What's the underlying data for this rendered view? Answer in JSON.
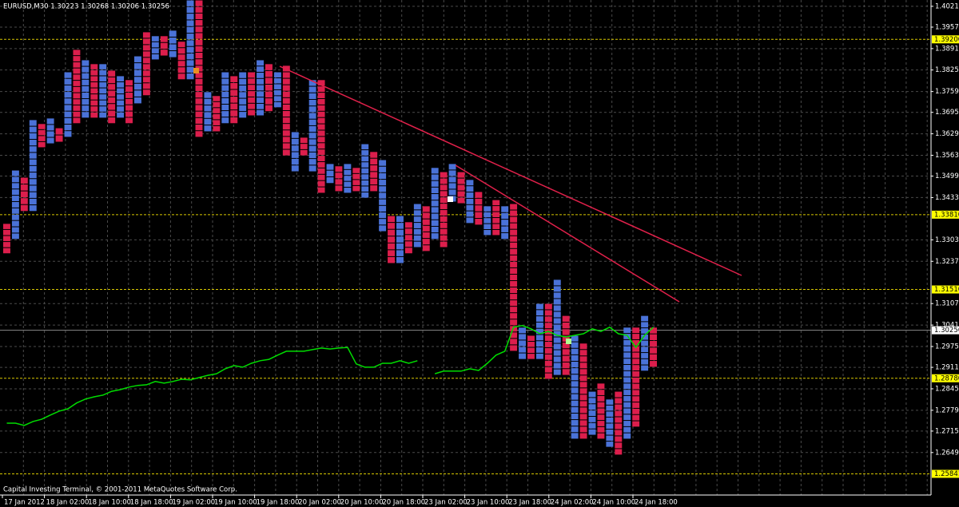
{
  "chart_data": {
    "type": "pointfigure",
    "title": "EURUSD,M30  1.30223 1.30268 1.30206 1.30256",
    "footer": "Capital Investing Terminal, © 2001-2011 MetaQuotes Software Corp.",
    "colors": [
      "#dc1e4c",
      "#4a72d8"
    ],
    "x_labels": [
      "17 Jan 2012",
      "18 Jan 02:00",
      "18 Jan 10:00",
      "18 Jan 18:00",
      "19 Jan 02:00",
      "19 Jan 10:00",
      "19 Jan 18:00",
      "20 Jan 02:00",
      "20 Jan 10:00",
      "20 Jan 18:00",
      "23 Jan 02:00",
      "23 Jan 10:00",
      "23 Jan 18:00",
      "24 Jan 02:00",
      "24 Jan 10:00",
      "24 Jan 18:00"
    ],
    "lows": [
      1.3261,
      1.3305,
      1.3391,
      1.3391,
      1.3587,
      1.3599,
      1.3604,
      1.3619,
      1.3661,
      1.3678,
      1.3678,
      1.3678,
      1.3661,
      1.3678,
      1.3661,
      1.3722,
      1.3747,
      1.3857,
      1.3869,
      1.3864,
      1.3796,
      1.3796,
      1.3619,
      1.3636,
      1.3636,
      1.3661,
      1.3661,
      1.3678,
      1.3685,
      1.3685,
      1.3698,
      1.371,
      1.3562,
      1.3513,
      1.3562,
      1.3513,
      1.3447,
      1.3477,
      1.3452,
      1.3447,
      1.3452,
      1.3432,
      1.3452,
      1.3329,
      1.3231,
      1.3231,
      1.3261,
      1.328,
      1.3268,
      1.3305,
      1.328,
      1.342,
      1.3415,
      1.3354,
      1.3349,
      1.3317,
      1.3317,
      1.3305,
      1.2961,
      1.2936,
      1.2936,
      1.2936,
      1.2875,
      1.2887,
      1.2887,
      1.2691,
      1.2691,
      1.2703,
      1.2691,
      1.2666,
      1.2642,
      1.2691,
      1.2728,
      1.29,
      1.2912
    ],
    "highs": [
      1.3354,
      1.3518,
      1.3496,
      1.3673,
      1.3661,
      1.3678,
      1.3648,
      1.382,
      1.3889,
      1.3857,
      1.3845,
      1.3845,
      1.3825,
      1.3808,
      1.3796,
      1.3869,
      1.3943,
      1.3931,
      1.3931,
      1.3948,
      1.3914,
      1.4041,
      1.4041,
      1.3759,
      1.3747,
      1.382,
      1.3808,
      1.382,
      1.382,
      1.3857,
      1.3845,
      1.382,
      1.384,
      1.3636,
      1.3619,
      1.3796,
      1.3796,
      1.3538,
      1.3531,
      1.3538,
      1.3526,
      1.3599,
      1.3575,
      1.355,
      1.3378,
      1.3378,
      1.3359,
      1.3415,
      1.3408,
      1.3526,
      1.3513,
      1.3538,
      1.3513,
      1.3489,
      1.3452,
      1.3408,
      1.3427,
      1.3408,
      1.3415,
      1.3035,
      1.301,
      1.3108,
      1.3108,
      1.3182,
      1.3071,
      1.301,
      1.2986,
      1.2838,
      1.2863,
      1.2814,
      1.2838,
      1.3035,
      1.3035,
      1.3071,
      1.3035
    ],
    "line": {
      "color": "#00dd00",
      "values": [
        1.274,
        1.274,
        1.2733,
        1.2745,
        1.2752,
        1.2765,
        1.2777,
        1.2784,
        1.2802,
        1.2814,
        1.2821,
        1.2826,
        1.2838,
        1.2843,
        1.2851,
        1.2856,
        1.2858,
        1.2868,
        1.2863,
        1.2868,
        1.2875,
        1.2873,
        1.288,
        1.2887,
        1.2892,
        1.2907,
        1.2917,
        1.2912,
        1.2924,
        1.2932,
        1.2936,
        1.2949,
        1.2961,
        1.2961,
        1.2961,
        1.2966,
        1.2971,
        1.2968,
        1.2971,
        1.2973,
        1.2922,
        1.2912,
        1.2912,
        1.2924,
        1.2924,
        1.2932,
        1.2924,
        1.2932,
        null,
        1.2892,
        1.29,
        1.29,
        1.29,
        1.2907,
        1.2902,
        1.2924,
        1.2949,
        1.2961,
        1.3035,
        1.304,
        1.303,
        1.3015,
        1.3022,
        1.301,
        1.3005,
        1.301,
        1.3015,
        1.303,
        1.3022,
        1.3035,
        1.3015,
        1.301,
        1.2973,
        1.301,
        1.3035
      ]
    },
    "ylim": [
      1.2519,
      1.4041
    ],
    "yticks": [
      1.40216,
      1.39576,
      1.38916,
      1.38258,
      1.37596,
      1.36956,
      1.36296,
      1.35636,
      1.34996,
      1.34336,
      1.33036,
      1.32376,
      1.31076,
      1.30416,
      1.29756,
      1.29116,
      1.28456,
      1.27796,
      1.27156,
      1.26496
    ],
    "levels": [
      {
        "value": 1.392,
        "label": "1.39200"
      },
      {
        "value": 1.3381,
        "label": "1.33810"
      },
      {
        "value": 1.3151,
        "label": "1.31510"
      },
      {
        "value": 1.2878,
        "label": "1.28780"
      },
      1.25841
    ],
    "current": 1.30256,
    "grid": true
  }
}
